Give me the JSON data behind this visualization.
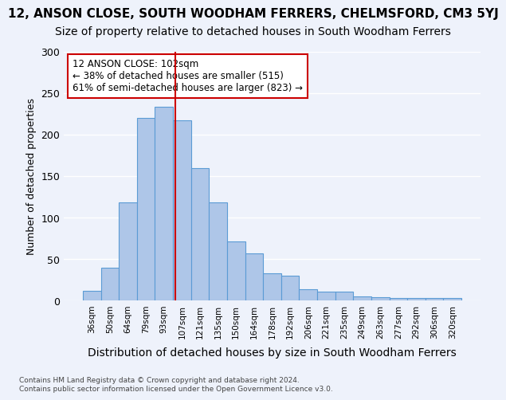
{
  "title": "12, ANSON CLOSE, SOUTH WOODHAM FERRERS, CHELMSFORD, CM3 5YJ",
  "subtitle": "Size of property relative to detached houses in South Woodham Ferrers",
  "xlabel": "Distribution of detached houses by size in South Woodham Ferrers",
  "ylabel": "Number of detached properties",
  "categories": [
    "36sqm",
    "50sqm",
    "64sqm",
    "79sqm",
    "93sqm",
    "107sqm",
    "121sqm",
    "135sqm",
    "150sqm",
    "164sqm",
    "178sqm",
    "192sqm",
    "206sqm",
    "221sqm",
    "235sqm",
    "249sqm",
    "263sqm",
    "277sqm",
    "292sqm",
    "306sqm",
    "320sqm"
  ],
  "values": [
    12,
    40,
    118,
    220,
    233,
    217,
    160,
    118,
    71,
    57,
    33,
    30,
    14,
    11,
    11,
    5,
    4,
    3,
    3,
    3,
    3
  ],
  "bar_color": "#aec6e8",
  "bar_edge_color": "#5b9bd5",
  "vline_color": "#cc0000",
  "annotation_text": "12 ANSON CLOSE: 102sqm\n← 38% of detached houses are smaller (515)\n61% of semi-detached houses are larger (823) →",
  "annotation_box_color": "#ffffff",
  "annotation_box_edge_color": "#cc0000",
  "ylim": [
    0,
    300
  ],
  "yticks": [
    0,
    50,
    100,
    150,
    200,
    250,
    300
  ],
  "background_color": "#eef2fb",
  "grid_color": "#ffffff",
  "footer": "Contains HM Land Registry data © Crown copyright and database right 2024.\nContains public sector information licensed under the Open Government Licence v3.0.",
  "title_fontsize": 11,
  "subtitle_fontsize": 10,
  "xlabel_fontsize": 10,
  "ylabel_fontsize": 9
}
